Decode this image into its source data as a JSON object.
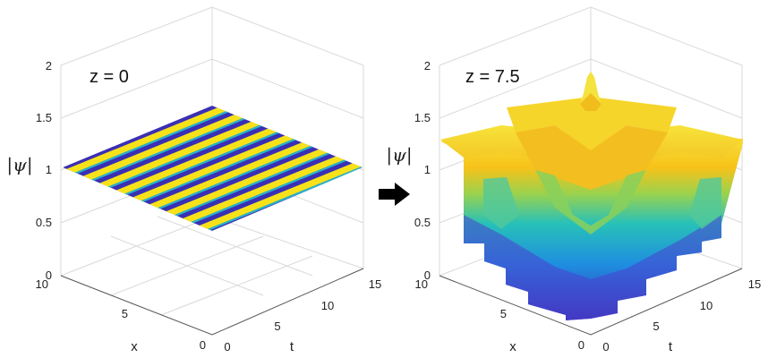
{
  "chart_data": [
    {
      "type": "surface",
      "annotation": "z = 0",
      "xlabel": "t",
      "ylabel": "x",
      "zlabel": "|ψ|",
      "t_ticks": [
        "0",
        "5",
        "10",
        "15"
      ],
      "x_ticks": [
        "0",
        "5",
        "10"
      ],
      "z_ticks": [
        "0",
        "0.5",
        "1",
        "1.5",
        "2"
      ],
      "t_range": [
        0,
        15
      ],
      "x_range": [
        0,
        10
      ],
      "zlim": [
        0,
        2
      ],
      "surface": {
        "description_value": 1,
        "stripes": 9,
        "colormap": [
          "#3b2fb4",
          "#27b5c8",
          "#f7e21a"
        ]
      }
    },
    {
      "type": "surface",
      "annotation": "z = 7.5",
      "xlabel": "t",
      "ylabel": "x",
      "zlabel": "|ψ|",
      "t_ticks": [
        "0",
        "5",
        "10",
        "15"
      ],
      "x_ticks": [
        "0",
        "5",
        "10"
      ],
      "z_ticks": [
        "0",
        "0.5",
        "1",
        "1.5",
        "2"
      ],
      "t_range": [
        0,
        15
      ],
      "x_range": [
        0,
        10
      ],
      "zlim": [
        0,
        2
      ],
      "surface": {
        "peak": 1.95,
        "plateau": 1.55,
        "rim": 1.25,
        "min": 0.0,
        "colormap": [
          "#3b2fb4",
          "#27b5c8",
          "#7fd36a",
          "#f7c61a",
          "#f5e63a"
        ]
      }
    }
  ],
  "arrow": {
    "icon": "right-arrow-icon"
  }
}
